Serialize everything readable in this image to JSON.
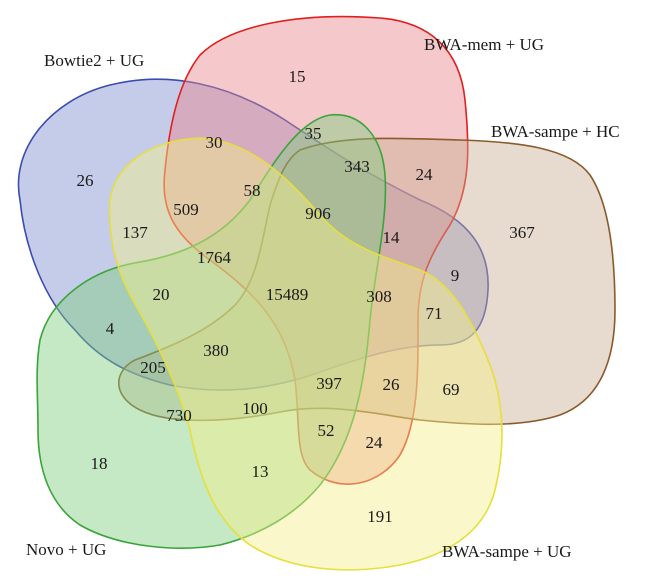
{
  "sets": [
    {
      "id": "bowtie2_ug",
      "label": "Bowtie2 + UG",
      "fill": "#7f8fd0",
      "stroke": "#3a4cb0"
    },
    {
      "id": "bwa_mem_ug",
      "label": "BWA-mem + UG",
      "fill": "#e8868c",
      "stroke": "#e0201e"
    },
    {
      "id": "bwa_sampe_hc",
      "label": "BWA-sampe + HC",
      "fill": "#c9ad92",
      "stroke": "#8b5a2b"
    },
    {
      "id": "novo_ug",
      "label": "Novo + UG",
      "fill": "#7fcc7f",
      "stroke": "#3aa43a"
    },
    {
      "id": "bwa_sampe_ug",
      "label": "BWA-sampe + UG",
      "fill": "#f4ef8a",
      "stroke": "#e6df3c"
    }
  ],
  "regions": [
    {
      "value": "26"
    },
    {
      "value": "15"
    },
    {
      "value": "30"
    },
    {
      "value": "35"
    },
    {
      "value": "343"
    },
    {
      "value": "24"
    },
    {
      "value": "367"
    },
    {
      "value": "58"
    },
    {
      "value": "509"
    },
    {
      "value": "137"
    },
    {
      "value": "906"
    },
    {
      "value": "14"
    },
    {
      "value": "1764"
    },
    {
      "value": "9"
    },
    {
      "value": "20"
    },
    {
      "value": "15489"
    },
    {
      "value": "308"
    },
    {
      "value": "71"
    },
    {
      "value": "4"
    },
    {
      "value": "380"
    },
    {
      "value": "205"
    },
    {
      "value": "397"
    },
    {
      "value": "26"
    },
    {
      "value": "69"
    },
    {
      "value": "730"
    },
    {
      "value": "100"
    },
    {
      "value": "52"
    },
    {
      "value": "24"
    },
    {
      "value": "18"
    },
    {
      "value": "13"
    },
    {
      "value": "191"
    }
  ]
}
